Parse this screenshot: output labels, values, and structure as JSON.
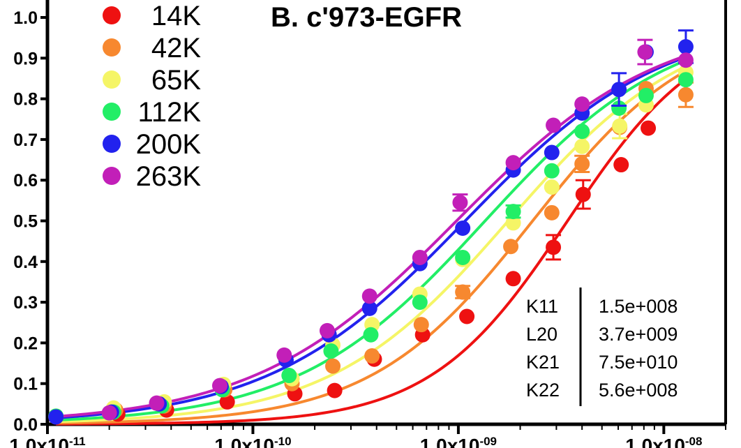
{
  "chart_data": {
    "type": "scatter",
    "title": "B.  c'973-EGFR",
    "xlabel": "",
    "ylabel": "",
    "xscale": "log",
    "xlim": [
      1e-11,
      2e-08
    ],
    "ylim": [
      0,
      1.0
    ],
    "y_ticks": [
      "0.0",
      "0.1",
      "0.2",
      "0.3",
      "0.4",
      "0.5",
      "0.6",
      "0.7",
      "0.8",
      "0.9",
      "1.0"
    ],
    "x_ticks": [
      {
        "value": 1e-11,
        "mantissa": "1.0x10",
        "exponent": "-11"
      },
      {
        "value": 1e-10,
        "mantissa": "1.0x10",
        "exponent": "-10"
      },
      {
        "value": 1e-09,
        "mantissa": "1.0x10",
        "exponent": "-09"
      },
      {
        "value": 1e-08,
        "mantissa": "1.0x10",
        "exponent": "-08"
      }
    ],
    "legend_position": "top-left",
    "grid": false,
    "series": [
      {
        "name": "14K",
        "color": "#ee1111",
        "x": [
          1.1e-11,
          2.2e-11,
          3.8e-11,
          7.5e-11,
          1.6e-10,
          2.5e-10,
          3.9e-10,
          6.7e-10,
          1.1e-09,
          1.85e-09,
          2.9e-09,
          4.05e-09,
          6.2e-09,
          8.4e-09
        ],
        "y": [
          0.018,
          0.025,
          0.035,
          0.055,
          0.075,
          0.083,
          0.16,
          0.22,
          0.265,
          0.358,
          0.435,
          0.565,
          0.638,
          0.728
        ],
        "err": [
          0,
          0,
          0,
          0,
          0,
          0,
          0,
          0,
          0,
          0,
          0.03,
          0.035,
          0,
          0
        ]
      },
      {
        "name": "42K",
        "color": "#f7882f",
        "x": [
          1.1e-11,
          2.15e-11,
          3.7e-11,
          7.3e-11,
          1.55e-10,
          2.45e-10,
          3.8e-10,
          6.6e-10,
          1.05e-09,
          1.8e-09,
          2.85e-09,
          4e-09,
          6.1e-09,
          8.2e-09,
          1.28e-08
        ],
        "y": [
          0.018,
          0.035,
          0.045,
          0.085,
          0.1,
          0.143,
          0.168,
          0.245,
          0.325,
          0.437,
          0.52,
          0.64,
          0.73,
          0.825,
          0.81
        ],
        "err": [
          0,
          0,
          0,
          0,
          0,
          0,
          0,
          0,
          0.015,
          0,
          0,
          0.02,
          0,
          0,
          0.03
        ]
      },
      {
        "name": "65K",
        "color": "#f5f566",
        "x": [
          1.1e-11,
          2.1e-11,
          3.7e-11,
          7.2e-11,
          1.55e-10,
          2.45e-10,
          3.8e-10,
          6.5e-10,
          1.05e-09,
          1.85e-09,
          2.85e-09,
          4e-09,
          6.1e-09,
          8.2e-09,
          1.28e-08
        ],
        "y": [
          0.02,
          0.04,
          0.055,
          0.098,
          0.112,
          0.195,
          0.245,
          0.32,
          0.405,
          0.495,
          0.583,
          0.683,
          0.733,
          0.785,
          0.865
        ],
        "err": [
          0,
          0,
          0,
          0,
          0,
          0,
          0,
          0,
          0,
          0,
          0,
          0,
          0.03,
          0,
          0
        ]
      },
      {
        "name": "112K",
        "color": "#22ee66",
        "x": [
          1.1e-11,
          2.1e-11,
          3.6e-11,
          7.1e-11,
          1.5e-10,
          2.4e-10,
          3.75e-10,
          6.5e-10,
          1.05e-09,
          1.85e-09,
          2.85e-09,
          4e-09,
          6.05e-09,
          8.2e-09,
          1.28e-08
        ],
        "y": [
          0.02,
          0.03,
          0.045,
          0.085,
          0.12,
          0.18,
          0.22,
          0.3,
          0.41,
          0.523,
          0.623,
          0.72,
          0.777,
          0.808,
          0.847
        ],
        "err": [
          0,
          0,
          0,
          0,
          0,
          0,
          0,
          0,
          0,
          0.015,
          0,
          0,
          0,
          0,
          0
        ]
      },
      {
        "name": "200K",
        "color": "#2222ee",
        "x": [
          1.1e-11,
          2.05e-11,
          3.5e-11,
          7e-11,
          1.45e-10,
          2.35e-10,
          3.7e-10,
          6.5e-10,
          1.05e-09,
          1.85e-09,
          2.85e-09,
          4e-09,
          6.05e-09,
          8.2e-09,
          1.28e-08
        ],
        "y": [
          0.018,
          0.03,
          0.05,
          0.093,
          0.158,
          0.22,
          0.285,
          0.395,
          0.482,
          0.625,
          0.668,
          0.765,
          0.823,
          0.915,
          0.928
        ],
        "err": [
          0,
          0,
          0,
          0,
          0,
          0,
          0,
          0,
          0,
          0,
          0,
          0,
          0.04,
          0,
          0.04
        ]
      },
      {
        "name": "263K",
        "color": "#c21fb8",
        "x": [
          2e-11,
          3.4e-11,
          6.9e-11,
          1.42e-10,
          2.3e-10,
          3.7e-10,
          6.5e-10,
          1.02e-09,
          1.85e-09,
          2.9e-09,
          4e-09,
          8.1e-09,
          1.28e-08
        ],
        "y": [
          0.028,
          0.052,
          0.095,
          0.17,
          0.23,
          0.315,
          0.41,
          0.545,
          0.643,
          0.735,
          0.787,
          0.915,
          0.895
        ],
        "err": [
          0,
          0,
          0,
          0,
          0,
          0,
          0,
          0.02,
          0,
          0,
          0,
          0.03,
          0
        ]
      }
    ],
    "fit_curves": [
      {
        "series": "14K",
        "ec50": 3.4e-09,
        "hill": 1.3,
        "top": 1.0
      },
      {
        "series": "42K",
        "ec50": 2.3e-09,
        "hill": 1.1,
        "top": 1.0
      },
      {
        "series": "65K",
        "ec50": 1.75e-09,
        "hill": 1.0,
        "top": 1.0
      },
      {
        "series": "112K",
        "ec50": 1.35e-09,
        "hill": 0.95,
        "top": 1.0
      },
      {
        "series": "200K",
        "ec50": 1.08e-09,
        "hill": 0.9,
        "top": 1.0
      },
      {
        "series": "263K",
        "ec50": 9.8e-10,
        "hill": 0.88,
        "top": 1.0
      }
    ],
    "parameters": [
      {
        "name": "K11",
        "value": "1.5e+008"
      },
      {
        "name": "L20",
        "value": "3.7e+009"
      },
      {
        "name": "K21",
        "value": "7.5e+010"
      },
      {
        "name": "K22",
        "value": "5.6e+008"
      }
    ]
  }
}
